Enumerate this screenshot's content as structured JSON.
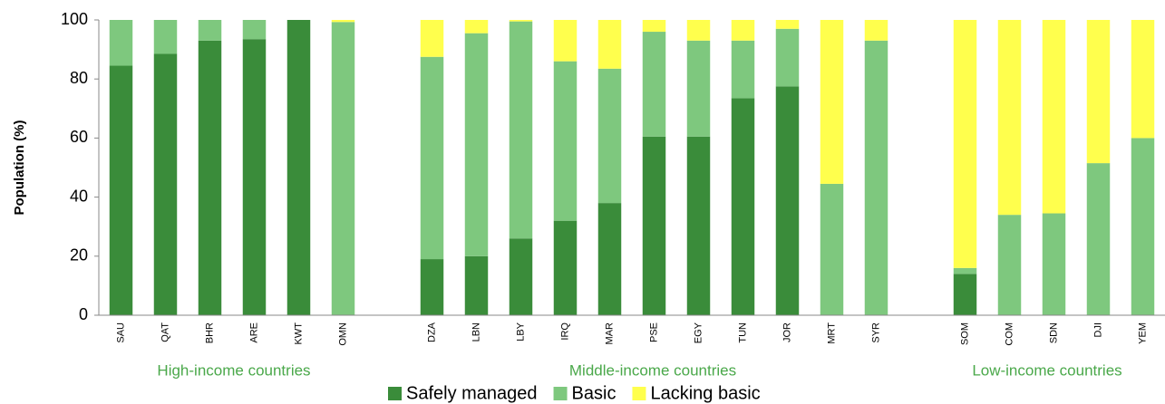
{
  "chart_data": {
    "type": "stacked_bar",
    "y_label": "Population (%)",
    "categories": [
      "SAU",
      "QAT",
      "BHR",
      "ARE",
      "KWT",
      "OMN",
      null,
      "DZA",
      "LBN",
      "LBY",
      "IRQ",
      "MAR",
      "PSE",
      "EGY",
      "TUN",
      "JOR",
      "MRT",
      "SYR",
      null,
      "SOM",
      "COM",
      "SDN",
      "DJI",
      "YEM"
    ],
    "series": [
      {
        "name": "Safely managed",
        "color": "#3a8c3a",
        "values": [
          84.5,
          88.5,
          93,
          93.5,
          100,
          0,
          null,
          19,
          20,
          26,
          32,
          38,
          60.5,
          60.5,
          73.5,
          77.5,
          0,
          0,
          null,
          14,
          0,
          0,
          0,
          0
        ]
      },
      {
        "name": "Basic",
        "color": "#7ec87e",
        "values": [
          15.5,
          11.5,
          7,
          6.5,
          0,
          99.3,
          null,
          68.5,
          75.5,
          73.5,
          54,
          45.5,
          35.5,
          32.5,
          19.5,
          19.5,
          44.5,
          93,
          null,
          2,
          34,
          34.5,
          51.5,
          60
        ]
      },
      {
        "name": "Lacking basic",
        "color": "#ffff4d",
        "values": [
          0,
          0,
          0,
          0,
          0,
          0.7,
          null,
          12.5,
          4.5,
          0.5,
          14,
          16.5,
          4,
          7,
          7,
          3,
          55.5,
          7,
          null,
          84,
          66,
          65.5,
          48.5,
          40
        ]
      }
    ],
    "group_labels": [
      "High-income countries",
      "Middle-income countries",
      "Low-income countries"
    ],
    "group_color": "#4aa84a",
    "ylim": [
      0,
      100
    ],
    "yticks": [
      0,
      20,
      40,
      60,
      80,
      100
    ],
    "grid": false
  }
}
